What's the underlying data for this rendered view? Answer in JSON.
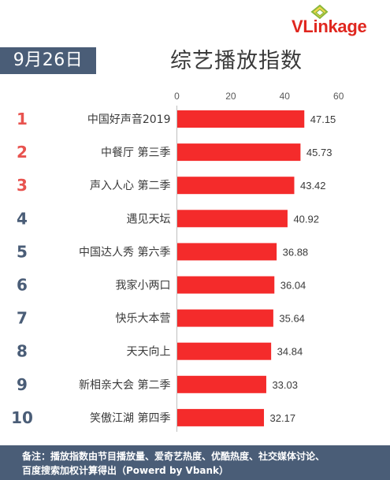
{
  "brand": {
    "name_v": "VL",
    "name_rest": "inkage",
    "icon": "vlinkage-logo-icon"
  },
  "header": {
    "date": "9月26日",
    "title": "综艺播放指数"
  },
  "colors": {
    "bar": "#f42b2b",
    "rank_top3": "#e8534f",
    "rank_other": "#4a5d77",
    "badge_bg": "#4a5d77",
    "axis": "#bfbfbf"
  },
  "chart_data": {
    "type": "bar",
    "orientation": "horizontal",
    "title": "综艺播放指数",
    "xlabel": "",
    "ylabel": "",
    "xlim": [
      0,
      60
    ],
    "xticks": [
      0,
      20,
      40,
      60
    ],
    "xtick_position": "top",
    "grid": false,
    "ranks": [
      "1",
      "2",
      "3",
      "4",
      "5",
      "6",
      "7",
      "8",
      "9",
      "10"
    ],
    "categories": [
      "中国好声音2019",
      "中餐厅 第三季",
      "声入人心 第二季",
      "遇见天坛",
      "中国达人秀 第六季",
      "我家小两口",
      "快乐大本营",
      "天天向上",
      "新相亲大会 第二季",
      "笑傲江湖 第四季"
    ],
    "values": [
      47.15,
      45.73,
      43.42,
      40.92,
      36.88,
      36.04,
      35.64,
      34.84,
      33.03,
      32.17
    ],
    "value_labels": [
      "47.15",
      "45.73",
      "43.42",
      "40.92",
      "36.88",
      "36.04",
      "35.64",
      "34.84",
      "33.03",
      "32.17"
    ]
  },
  "footer": {
    "note_line1": "备注：播放指数由节目播放量、爱奇艺热度、优酷热度、社交媒体讨论、",
    "note_line2": "百度搜索加权计算得出（Powerd by Vbank）"
  }
}
